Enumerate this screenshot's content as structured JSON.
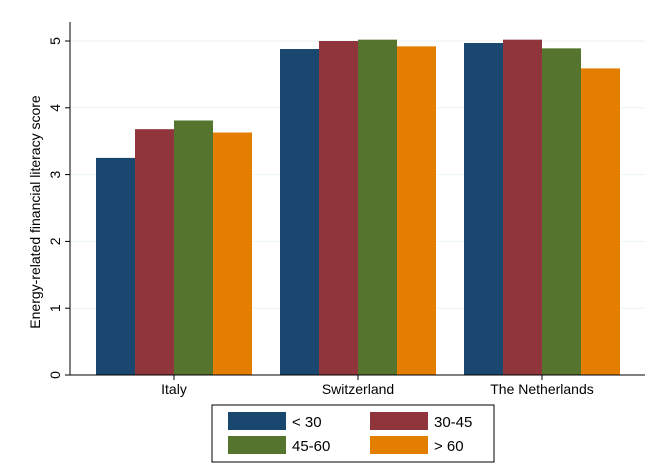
{
  "chart_data": {
    "type": "bar",
    "title": "",
    "xlabel": "",
    "ylabel": "Energy-related financial literacy score",
    "categories": [
      "Italy",
      "Switzerland",
      "The Netherlands"
    ],
    "ylim": [
      0,
      5.2
    ],
    "yticks": [
      0,
      1,
      2,
      3,
      4,
      5
    ],
    "grid": true,
    "legend_position": "bottom",
    "series": [
      {
        "name": "< 30",
        "color": "#1a476f",
        "values": [
          3.25,
          4.88,
          4.97
        ]
      },
      {
        "name": "30-45",
        "color": "#90353b",
        "values": [
          3.68,
          5.0,
          5.02
        ]
      },
      {
        "name": "45-60",
        "color": "#55752f",
        "values": [
          3.81,
          5.02,
          4.89
        ]
      },
      {
        "name": "> 60",
        "color": "#e37e00",
        "values": [
          3.63,
          4.92,
          4.59
        ]
      }
    ]
  }
}
